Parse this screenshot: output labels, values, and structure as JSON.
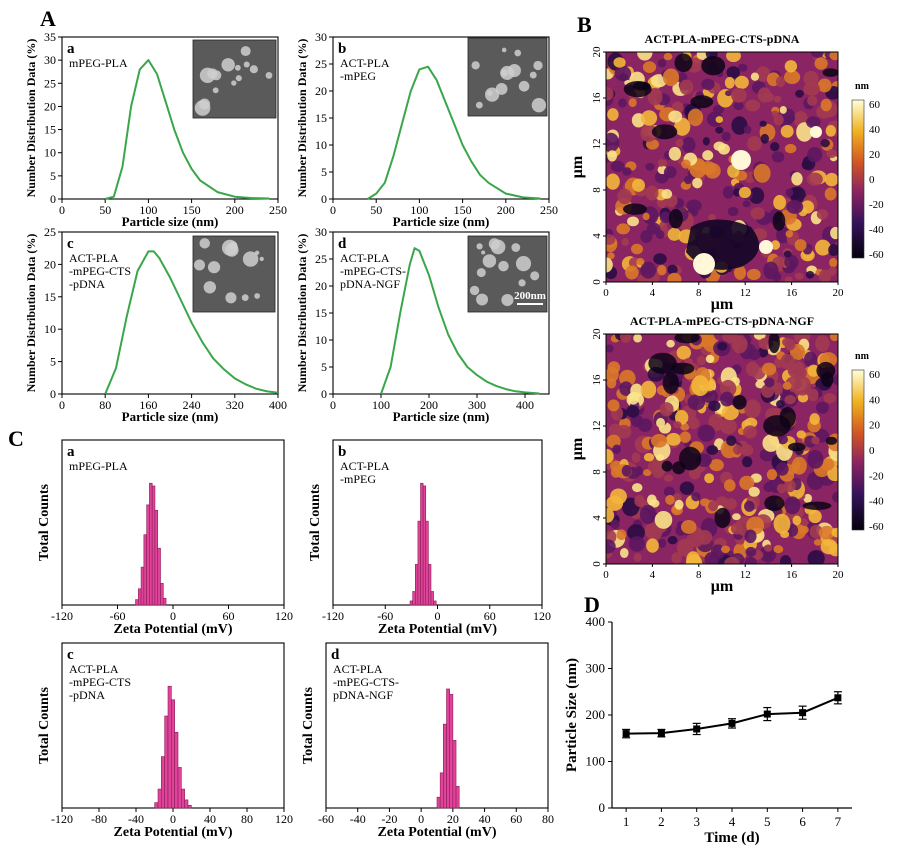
{
  "panel_labels": {
    "A": "A",
    "B": "B",
    "C": "C",
    "D": "D"
  },
  "colors": {
    "green": "#3aa64a",
    "pink": "#e0449a",
    "pinkdark": "#8a1d55",
    "axis": "#000000"
  },
  "chart_data": [
    {
      "id": "A-a",
      "type": "line",
      "sub": "a",
      "label_lines": [
        "mPEG-PLA"
      ],
      "xlabel": "Particle size (nm)",
      "ylabel": "Number Distribution Data (%)",
      "xlim": [
        0,
        250
      ],
      "ylim": [
        0,
        35
      ],
      "xticks": [
        "0",
        "50",
        "100",
        "150",
        "200",
        "250"
      ],
      "yticks": [
        "0",
        "5",
        "10",
        "15",
        "20",
        "25",
        "30",
        "35"
      ],
      "x": [
        50,
        60,
        70,
        80,
        90,
        100,
        110,
        120,
        130,
        140,
        150,
        160,
        180,
        200,
        220,
        240
      ],
      "y": [
        0,
        0.5,
        7,
        20,
        28,
        30,
        27,
        21,
        15,
        10,
        6.5,
        4,
        1.5,
        0.5,
        0.2,
        0.1
      ]
    },
    {
      "id": "A-b",
      "type": "line",
      "sub": "b",
      "label_lines": [
        "ACT-PLA",
        "-mPEG"
      ],
      "xlabel": "Particle size (nm)",
      "ylabel": "Number Distribution Data (%)",
      "xlim": [
        0,
        250
      ],
      "ylim": [
        0,
        30
      ],
      "xticks": [
        "0",
        "50",
        "100",
        "150",
        "200",
        "250"
      ],
      "yticks": [
        "0",
        "5",
        "10",
        "15",
        "20",
        "25",
        "30"
      ],
      "x": [
        40,
        50,
        60,
        70,
        80,
        90,
        100,
        110,
        120,
        130,
        140,
        150,
        160,
        170,
        180,
        200,
        220,
        240
      ],
      "y": [
        0,
        1,
        3,
        8,
        14,
        20,
        24,
        24.5,
        22,
        18,
        14,
        10,
        7,
        4.5,
        3,
        1,
        0.3,
        0.1
      ]
    },
    {
      "id": "A-c",
      "type": "line",
      "sub": "c",
      "label_lines": [
        "ACT-PLA",
        "-mPEG-CTS",
        "-pDNA"
      ],
      "xlabel": "Particle size (nm)",
      "ylabel": "Number Distribution Data (%)",
      "xlim": [
        0,
        400
      ],
      "ylim": [
        0,
        25
      ],
      "xticks": [
        "0",
        "80",
        "160",
        "240",
        "320",
        "400"
      ],
      "yticks": [
        "0",
        "5",
        "10",
        "15",
        "20",
        "25"
      ],
      "x": [
        80,
        100,
        120,
        140,
        160,
        170,
        180,
        200,
        220,
        240,
        260,
        280,
        300,
        320,
        340,
        360,
        380,
        400
      ],
      "y": [
        0,
        4,
        12,
        19,
        22,
        22,
        21,
        18,
        14.5,
        11,
        8,
        5.5,
        3.8,
        2.4,
        1.5,
        0.8,
        0.4,
        0.2
      ]
    },
    {
      "id": "A-d",
      "type": "line",
      "sub": "d",
      "label_lines": [
        "ACT-PLA",
        "-mPEG-CTS-",
        "pDNA-NGF"
      ],
      "scale_label": "200nm",
      "xlabel": "Particle size (nm)",
      "ylabel": "Number Distribution Data (%)",
      "xlim": [
        0,
        450
      ],
      "ylim": [
        0,
        30
      ],
      "xticks": [
        "0",
        "100",
        "200",
        "300",
        "400"
      ],
      "yticks": [
        "0",
        "5",
        "10",
        "15",
        "20",
        "25",
        "30"
      ],
      "x": [
        100,
        120,
        140,
        160,
        170,
        180,
        200,
        220,
        240,
        260,
        280,
        300,
        320,
        340,
        360,
        380,
        400,
        430
      ],
      "y": [
        0,
        5,
        15,
        24,
        27,
        26.5,
        22,
        16,
        11,
        7.5,
        5,
        3.5,
        2.3,
        1.5,
        0.9,
        0.5,
        0.3,
        0.1
      ]
    },
    {
      "id": "C-a",
      "type": "bar",
      "sub": "a",
      "label_lines": [
        "mPEG-PLA"
      ],
      "xlabel": "Zeta Potential (mV)",
      "ylabel": "Total Counts",
      "xlim": [
        -120,
        120
      ],
      "ylim": [
        0,
        1
      ],
      "xticks": [
        "-120",
        "-60",
        "0",
        "60",
        "120"
      ],
      "bar_width": 3,
      "centers": [
        -39,
        -36,
        -33,
        -30,
        -27,
        -24,
        -21,
        -18,
        -15,
        -12,
        -9
      ],
      "values": [
        0.04,
        0.12,
        0.28,
        0.52,
        0.74,
        0.9,
        0.88,
        0.7,
        0.42,
        0.16,
        0.05
      ]
    },
    {
      "id": "C-b",
      "type": "bar",
      "sub": "b",
      "label_lines": [
        "ACT-PLA",
        "-mPEG"
      ],
      "xlabel": "Zeta Potential (mV)",
      "ylabel": "Total Counts",
      "xlim": [
        -120,
        120
      ],
      "ylim": [
        0,
        1
      ],
      "xticks": [
        "-120",
        "-60",
        "0",
        "60",
        "120"
      ],
      "bar_width": 3,
      "centers": [
        -30,
        -27,
        -24,
        -21,
        -18,
        -15,
        -12,
        -9,
        -6,
        -3
      ],
      "values": [
        0.03,
        0.1,
        0.3,
        0.62,
        0.9,
        0.88,
        0.62,
        0.3,
        0.1,
        0.03
      ]
    },
    {
      "id": "C-c",
      "type": "bar",
      "sub": "c",
      "label_lines": [
        "ACT-PLA",
        "-mPEG-CTS",
        "-pDNA"
      ],
      "xlabel": "Zeta Potential (mV)",
      "ylabel": "Total Counts",
      "xlim": [
        -120,
        120
      ],
      "ylim": [
        0,
        1
      ],
      "xticks": [
        "-120",
        "-80",
        "-40",
        "0",
        "40",
        "80",
        "120"
      ],
      "bar_width": 3.6,
      "centers": [
        -18,
        -14.4,
        -10.8,
        -7.2,
        -3.6,
        0,
        3.6,
        7.2,
        10.8,
        14.4,
        18
      ],
      "values": [
        0.04,
        0.14,
        0.38,
        0.68,
        0.9,
        0.8,
        0.56,
        0.3,
        0.14,
        0.06,
        0.02
      ]
    },
    {
      "id": "C-d",
      "type": "bar",
      "sub": "d",
      "label_lines": [
        "ACT-PLA",
        "-mPEG-CTS-",
        "pDNA-NGF"
      ],
      "xlabel": "Zeta Potential (mV)",
      "ylabel": "Total Counts",
      "xlim": [
        -60,
        80
      ],
      "ylim": [
        0,
        1
      ],
      "xticks": [
        "-60",
        "-40",
        "-20",
        "0",
        "20",
        "40",
        "60",
        "80"
      ],
      "bar_width": 2,
      "centers": [
        11,
        13,
        15,
        17,
        19,
        21,
        23
      ],
      "values": [
        0.08,
        0.26,
        0.62,
        0.88,
        0.84,
        0.5,
        0.16
      ]
    },
    {
      "id": "B-1",
      "type": "heatmap",
      "title": "ACT-PLA-mPEG-CTS-pDNA",
      "xlabel": "μm",
      "ylabel": "μm",
      "xlim": [
        0,
        20
      ],
      "ylim": [
        0,
        20
      ],
      "xticks": [
        "0",
        "4",
        "8",
        "12",
        "16",
        "20"
      ],
      "yticks": [
        "0",
        "4",
        "8",
        "12",
        "16",
        "20"
      ],
      "colorbar": {
        "unit": "nm",
        "ticks": [
          "60",
          "40",
          "20",
          "0",
          "-20",
          "-40",
          "-60"
        ]
      }
    },
    {
      "id": "B-2",
      "type": "heatmap",
      "title": "ACT-PLA-mPEG-CTS-pDNA-NGF",
      "xlabel": "μm",
      "ylabel": "μm",
      "xlim": [
        0,
        20
      ],
      "ylim": [
        0,
        20
      ],
      "xticks": [
        "0",
        "4",
        "8",
        "12",
        "16",
        "20"
      ],
      "yticks": [
        "0",
        "4",
        "8",
        "12",
        "16",
        "20"
      ],
      "colorbar": {
        "unit": "nm",
        "ticks": [
          "60",
          "40",
          "20",
          "0",
          "-20",
          "-40",
          "-60"
        ]
      }
    },
    {
      "id": "D",
      "type": "line",
      "xlabel": "Time (d)",
      "ylabel": "Particle Size (nm)",
      "xlim": [
        0.6,
        7.4
      ],
      "ylim": [
        0,
        400
      ],
      "xticks": [
        "1",
        "2",
        "3",
        "4",
        "5",
        "6",
        "7"
      ],
      "yticks": [
        "0",
        "100",
        "200",
        "300",
        "400"
      ],
      "x": [
        1,
        2,
        3,
        4,
        5,
        6,
        7
      ],
      "y": [
        160,
        161,
        170,
        182,
        202,
        205,
        237
      ],
      "err": [
        9,
        8,
        12,
        10,
        14,
        14,
        13
      ]
    }
  ]
}
